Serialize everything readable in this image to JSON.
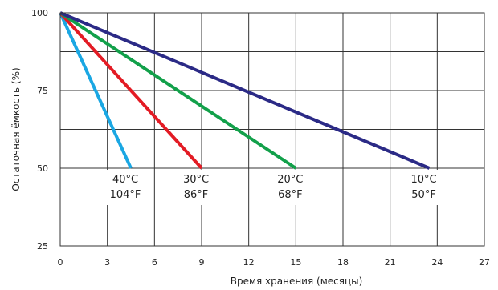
{
  "chart_data": {
    "type": "line",
    "title": "",
    "xlabel": "Время хранения (месяцы)",
    "ylabel": "Остаточная ёмкость (%)",
    "xlim": [
      0,
      27
    ],
    "ylim": [
      25,
      100
    ],
    "xticks": [
      0,
      3,
      6,
      9,
      12,
      15,
      18,
      21,
      24,
      27
    ],
    "yticks": [
      25,
      50,
      75,
      100
    ],
    "grid": true,
    "legend": "none",
    "series": [
      {
        "color": "#1aa7e3",
        "x": [
          0,
          4.5
        ],
        "y": [
          100,
          50
        ],
        "label_c": "40°C",
        "label_f": "104°F"
      },
      {
        "color": "#e31b24",
        "x": [
          0,
          9
        ],
        "y": [
          100,
          50
        ],
        "label_c": "30°C",
        "label_f": "86°F"
      },
      {
        "color": "#12a04a",
        "x": [
          0,
          15
        ],
        "y": [
          100,
          50
        ],
        "label_c": "20°C",
        "label_f": "68°F"
      },
      {
        "color": "#2b2a86",
        "x": [
          0,
          23.5
        ],
        "y": [
          100,
          50
        ],
        "label_c": "10°C",
        "label_f": "50°F"
      }
    ]
  }
}
